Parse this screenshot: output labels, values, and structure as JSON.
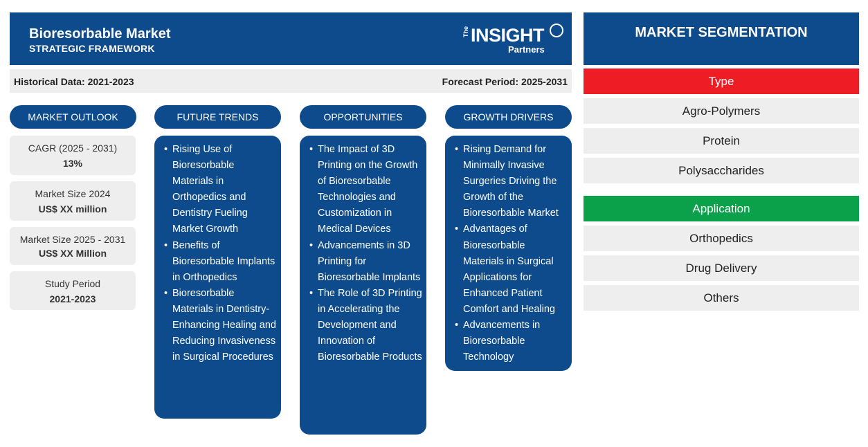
{
  "header": {
    "title": "Bioresorbable Market",
    "subtitle": "STRATEGIC FRAMEWORK",
    "logo": {
      "the": "The",
      "insight": "INSIGHT",
      "partners": "Partners"
    }
  },
  "period_bar": {
    "historical": "Historical Data: 2021-2023",
    "forecast": "Forecast Period: 2025-2031"
  },
  "columns": {
    "market_outlook": "MARKET OUTLOOK",
    "future_trends": "FUTURE TRENDS",
    "opportunities": "OPPORTUNITIES",
    "growth_drivers": "GROWTH DRIVERS"
  },
  "outlook": [
    {
      "label": "CAGR (2025 - 2031)",
      "value": "13%"
    },
    {
      "label": "Market Size 2024",
      "value": "US$ XX million"
    },
    {
      "label": "Market Size 2025 - 2031",
      "value": "US$ XX Million"
    },
    {
      "label": "Study Period",
      "value": "2021-2023"
    }
  ],
  "future_trends": [
    "Rising Use of Bioresorbable Materials in Orthopedics and Dentistry Fueling Market Growth",
    "Benefits of Bioresorbable Implants in Orthopedics",
    "Bioresorbable Materials in Dentistry- Enhancing Healing and Reducing Invasiveness in Surgical Procedures"
  ],
  "opportunities": [
    "The Impact of 3D Printing on the Growth of Bioresorbable Technologies and Customization in Medical Devices",
    "Advancements in 3D Printing for Bioresorbable Implants",
    "The Role of 3D Printing in Accelerating the Development and Innovation of Bioresorbable Products"
  ],
  "growth_drivers": [
    "Rising Demand for Minimally Invasive Surgeries Driving the Growth of the Bioresorbable Market",
    "Advantages of Bioresorbable Materials in Surgical Applications for Enhanced Patient Comfort and Healing",
    "Advancements in Bioresorbable Technology"
  ],
  "segmentation": {
    "title": "MARKET SEGMENTATION",
    "type": {
      "label": "Type",
      "color": "#ee1c25",
      "items": [
        "Agro-Polymers",
        "Protein",
        "Polysaccharides"
      ]
    },
    "application": {
      "label": "Application",
      "color": "#0aa14a",
      "items": [
        "Orthopedics",
        "Drug Delivery",
        "Others"
      ]
    }
  }
}
